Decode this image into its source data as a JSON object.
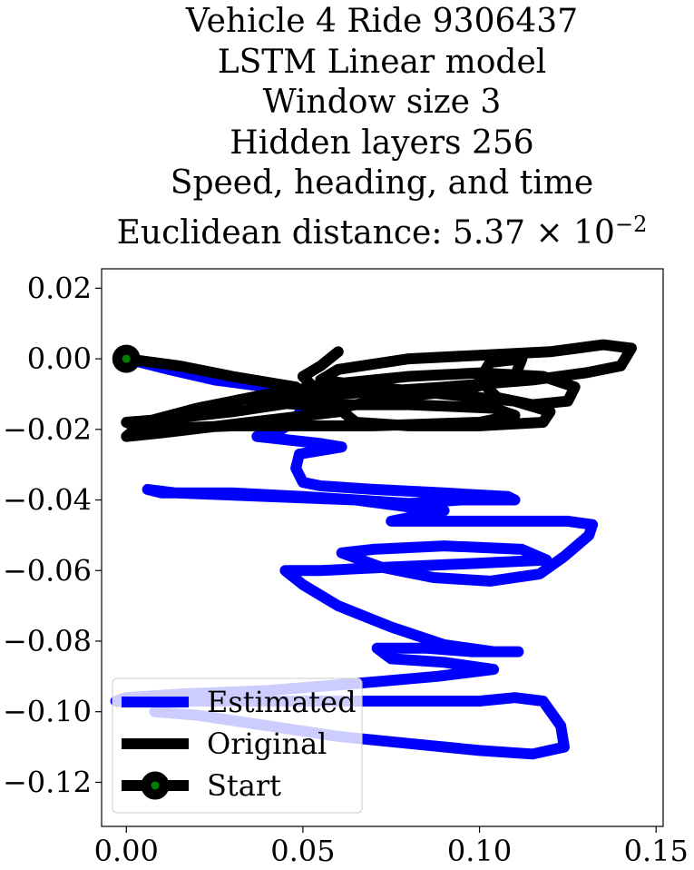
{
  "title_lines": [
    "Vehicle 4 Ride 9306437",
    "LSTM Linear model",
    "Window size 3",
    "Hidden layers 256",
    "Speed, heading, and time"
  ],
  "title_distance": {
    "prefix": "Euclidean distance: 5.37 × 10",
    "exponent": "−2"
  },
  "chart_data": {
    "type": "line",
    "xlabel": "",
    "ylabel": "",
    "xlim": [
      -0.007,
      0.152
    ],
    "ylim": [
      -0.1325,
      0.0255
    ],
    "grid": false,
    "legend_position": "lower-left",
    "xticks": [
      {
        "value": 0.0,
        "label": "0.00"
      },
      {
        "value": 0.05,
        "label": "0.05"
      },
      {
        "value": 0.1,
        "label": "0.10"
      },
      {
        "value": 0.15,
        "label": "0.15"
      }
    ],
    "yticks": [
      {
        "value": 0.02,
        "label": "0.02"
      },
      {
        "value": 0.0,
        "label": "0.00"
      },
      {
        "value": -0.02,
        "label": "−0.02"
      },
      {
        "value": -0.04,
        "label": "−0.04"
      },
      {
        "value": -0.06,
        "label": "−0.06"
      },
      {
        "value": -0.08,
        "label": "−0.08"
      },
      {
        "value": -0.1,
        "label": "−0.10"
      },
      {
        "value": -0.12,
        "label": "−0.12"
      }
    ],
    "series": [
      {
        "name": "Estimated",
        "color": "#0000ff",
        "points": [
          [
            0.0,
            0.0
          ],
          [
            0.012,
            -0.003
          ],
          [
            0.025,
            -0.006
          ],
          [
            0.04,
            -0.008
          ],
          [
            0.046,
            -0.01
          ],
          [
            0.05,
            -0.014
          ],
          [
            0.047,
            -0.018
          ],
          [
            0.044,
            -0.02
          ],
          [
            0.037,
            -0.022
          ],
          [
            0.046,
            -0.023
          ],
          [
            0.055,
            -0.024
          ],
          [
            0.061,
            -0.025
          ],
          [
            0.055,
            -0.026
          ],
          [
            0.049,
            -0.027
          ],
          [
            0.048,
            -0.031
          ],
          [
            0.05,
            -0.035
          ],
          [
            0.055,
            -0.036
          ],
          [
            0.07,
            -0.037
          ],
          [
            0.09,
            -0.038
          ],
          [
            0.108,
            -0.039
          ],
          [
            0.11,
            -0.04
          ],
          [
            0.095,
            -0.04
          ],
          [
            0.08,
            -0.041
          ],
          [
            0.065,
            -0.04
          ],
          [
            0.05,
            -0.039
          ],
          [
            0.03,
            -0.038
          ],
          [
            0.01,
            -0.038
          ],
          [
            0.006,
            -0.037
          ],
          [
            0.014,
            -0.038
          ],
          [
            0.04,
            -0.039
          ],
          [
            0.065,
            -0.04
          ],
          [
            0.08,
            -0.042
          ],
          [
            0.09,
            -0.043
          ],
          [
            0.08,
            -0.045
          ],
          [
            0.075,
            -0.046
          ],
          [
            0.09,
            -0.046
          ],
          [
            0.11,
            -0.046
          ],
          [
            0.125,
            -0.046
          ],
          [
            0.132,
            -0.047
          ],
          [
            0.131,
            -0.05
          ],
          [
            0.124,
            -0.056
          ],
          [
            0.117,
            -0.061
          ],
          [
            0.103,
            -0.063
          ],
          [
            0.087,
            -0.062
          ],
          [
            0.072,
            -0.059
          ],
          [
            0.061,
            -0.055
          ],
          [
            0.07,
            -0.054
          ],
          [
            0.09,
            -0.053
          ],
          [
            0.112,
            -0.054
          ],
          [
            0.119,
            -0.057
          ],
          [
            0.098,
            -0.058
          ],
          [
            0.075,
            -0.059
          ],
          [
            0.055,
            -0.06
          ],
          [
            0.045,
            -0.06
          ],
          [
            0.05,
            -0.064
          ],
          [
            0.06,
            -0.07
          ],
          [
            0.075,
            -0.076
          ],
          [
            0.09,
            -0.081
          ],
          [
            0.104,
            -0.083
          ],
          [
            0.111,
            -0.083
          ],
          [
            0.098,
            -0.083
          ],
          [
            0.085,
            -0.082
          ],
          [
            0.071,
            -0.082
          ],
          [
            0.075,
            -0.085
          ],
          [
            0.09,
            -0.086
          ],
          [
            0.104,
            -0.088
          ],
          [
            0.088,
            -0.09
          ],
          [
            0.065,
            -0.092
          ],
          [
            0.04,
            -0.094
          ],
          [
            0.015,
            -0.095
          ],
          [
            0.0,
            -0.096
          ],
          [
            -0.003,
            -0.097
          ],
          [
            0.01,
            -0.097
          ],
          [
            0.03,
            -0.097
          ],
          [
            0.05,
            -0.097
          ],
          [
            0.07,
            -0.097
          ],
          [
            0.09,
            -0.097
          ],
          [
            0.1,
            -0.097
          ],
          [
            0.11,
            -0.096
          ],
          [
            0.118,
            -0.097
          ],
          [
            0.123,
            -0.104
          ],
          [
            0.124,
            -0.11
          ],
          [
            0.115,
            -0.112
          ],
          [
            0.1,
            -0.111
          ],
          [
            0.08,
            -0.109
          ],
          [
            0.06,
            -0.107
          ],
          [
            0.04,
            -0.104
          ],
          [
            0.02,
            -0.101
          ],
          [
            0.008,
            -0.1
          ]
        ]
      },
      {
        "name": "Original",
        "color": "#000000",
        "points": [
          [
            0.0,
            0.0
          ],
          [
            0.015,
            -0.002
          ],
          [
            0.03,
            -0.005
          ],
          [
            0.048,
            -0.008
          ],
          [
            0.05,
            -0.012
          ],
          [
            0.03,
            -0.015
          ],
          [
            0.012,
            -0.017
          ],
          [
            0.0,
            -0.018
          ],
          [
            0.005,
            -0.02
          ],
          [
            0.03,
            -0.019
          ],
          [
            0.07,
            -0.019
          ],
          [
            0.1,
            -0.018
          ],
          [
            0.11,
            -0.016
          ],
          [
            0.104,
            -0.014
          ],
          [
            0.08,
            -0.013
          ],
          [
            0.05,
            -0.013
          ],
          [
            0.035,
            -0.012
          ],
          [
            0.06,
            -0.01
          ],
          [
            0.09,
            -0.008
          ],
          [
            0.115,
            -0.006
          ],
          [
            0.13,
            -0.004
          ],
          [
            0.14,
            -0.002
          ],
          [
            0.143,
            0.003
          ],
          [
            0.135,
            0.004
          ],
          [
            0.12,
            0.002
          ],
          [
            0.1,
            0.001
          ],
          [
            0.08,
            0.0
          ],
          [
            0.06,
            -0.003
          ],
          [
            0.055,
            -0.006
          ],
          [
            0.07,
            -0.008
          ],
          [
            0.09,
            -0.01
          ],
          [
            0.11,
            -0.012
          ],
          [
            0.12,
            -0.015
          ],
          [
            0.118,
            -0.018
          ],
          [
            0.1,
            -0.019
          ],
          [
            0.08,
            -0.019
          ],
          [
            0.065,
            -0.018
          ],
          [
            0.06,
            -0.014
          ],
          [
            0.075,
            -0.011
          ],
          [
            0.095,
            -0.009
          ],
          [
            0.11,
            -0.005
          ],
          [
            0.112,
            0.0
          ],
          [
            0.103,
            -0.001
          ],
          [
            0.1,
            -0.006
          ],
          [
            0.105,
            -0.011
          ],
          [
            0.115,
            -0.013
          ],
          [
            0.125,
            -0.012
          ],
          [
            0.127,
            -0.008
          ],
          [
            0.118,
            -0.005
          ],
          [
            0.1,
            -0.004
          ],
          [
            0.08,
            -0.005
          ],
          [
            0.06,
            -0.007
          ],
          [
            0.04,
            -0.01
          ],
          [
            0.02,
            -0.014
          ],
          [
            0.005,
            -0.018
          ],
          [
            0.0,
            -0.022
          ],
          [
            0.01,
            -0.021
          ],
          [
            0.035,
            -0.018
          ],
          [
            0.06,
            -0.015
          ],
          [
            0.055,
            -0.01
          ],
          [
            0.05,
            -0.005
          ],
          [
            0.055,
            -0.002
          ],
          [
            0.06,
            0.002
          ]
        ]
      }
    ],
    "start_point": {
      "name": "Start",
      "x": 0.0,
      "y": 0.0,
      "edge_color": "#000000",
      "face_color": "#008000"
    },
    "legend": [
      {
        "label": "Estimated",
        "color": "#0000ff",
        "marker": false
      },
      {
        "label": "Original",
        "color": "#000000",
        "marker": false
      },
      {
        "label": "Start",
        "color": "#000000",
        "marker": true,
        "marker_face": "#008000"
      }
    ]
  }
}
